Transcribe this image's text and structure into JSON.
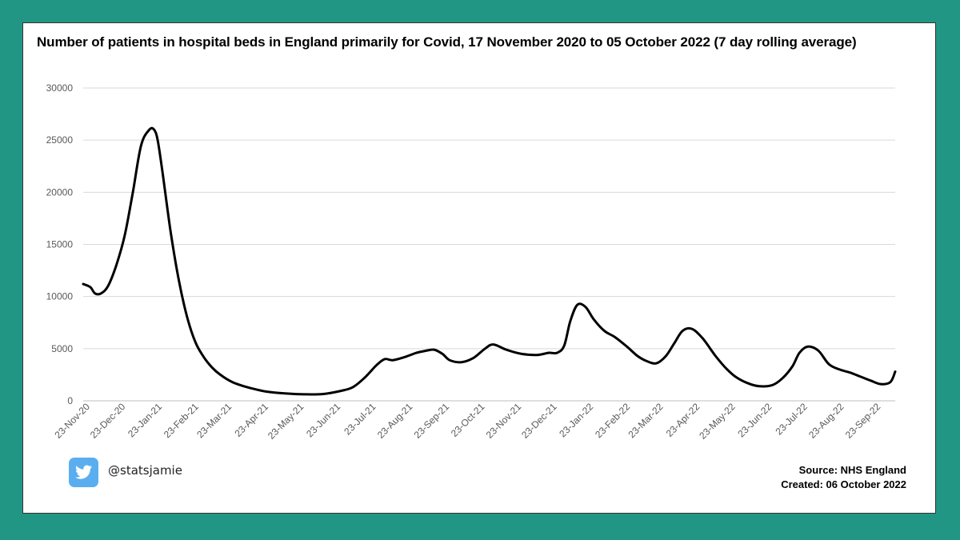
{
  "colors": {
    "background": "#229684",
    "line": "#000000",
    "grid": "#d9d9d9",
    "twitter": "#5aaeef"
  },
  "footer": {
    "handle": "@statsjamie",
    "handle_icon": "twitter-bird-icon",
    "source": "Source: NHS England",
    "created": "Created: 06 October 2022"
  },
  "chart_data": {
    "type": "line",
    "title": "Number of patients in hospital beds in England primarily for Covid, 17 November 2020 to 05 October 2022 (7 day rolling average)",
    "xlabel": "",
    "ylabel": "",
    "ylim": [
      0,
      30000
    ],
    "yticks": [
      "0",
      "5000",
      "10000",
      "15000",
      "20000",
      "25000",
      "30000"
    ],
    "grid": true,
    "legend": "none",
    "x_start": "2020-11-17",
    "x_end": "2022-10-05",
    "x_tick_labels": [
      "23-Nov-20",
      "23-Dec-20",
      "23-Jan-21",
      "23-Feb-21",
      "23-Mar-21",
      "23-Apr-21",
      "23-May-21",
      "23-Jun-21",
      "23-Jul-21",
      "23-Aug-21",
      "23-Sep-21",
      "23-Oct-21",
      "23-Nov-21",
      "23-Dec-21",
      "23-Jan-22",
      "23-Feb-22",
      "23-Mar-22",
      "23-Apr-22",
      "23-May-22",
      "23-Jun-22",
      "23-Jul-22",
      "23-Aug-22",
      "23-Sep-22"
    ],
    "x_tick_dates": [
      "2020-11-23",
      "2020-12-23",
      "2021-01-23",
      "2021-02-23",
      "2021-03-23",
      "2021-04-23",
      "2021-05-23",
      "2021-06-23",
      "2021-07-23",
      "2021-08-23",
      "2021-09-23",
      "2021-10-23",
      "2021-11-23",
      "2021-12-23",
      "2022-01-23",
      "2022-02-23",
      "2022-03-23",
      "2022-04-23",
      "2022-05-23",
      "2022-06-23",
      "2022-07-23",
      "2022-08-23",
      "2022-09-23"
    ],
    "x": [
      "2020-11-17",
      "2020-11-23",
      "2020-11-27",
      "2020-12-02",
      "2020-12-08",
      "2020-12-15",
      "2020-12-22",
      "2020-12-29",
      "2021-01-05",
      "2021-01-12",
      "2021-01-16",
      "2021-01-19",
      "2021-01-23",
      "2021-01-30",
      "2021-02-06",
      "2021-02-13",
      "2021-02-20",
      "2021-02-27",
      "2021-03-06",
      "2021-03-13",
      "2021-03-23",
      "2021-04-02",
      "2021-04-12",
      "2021-04-23",
      "2021-05-08",
      "2021-05-23",
      "2021-06-08",
      "2021-06-23",
      "2021-07-03",
      "2021-07-13",
      "2021-07-23",
      "2021-07-30",
      "2021-08-06",
      "2021-08-16",
      "2021-08-26",
      "2021-09-03",
      "2021-09-10",
      "2021-09-17",
      "2021-09-23",
      "2021-10-03",
      "2021-10-13",
      "2021-10-23",
      "2021-10-30",
      "2021-11-10",
      "2021-11-23",
      "2021-12-06",
      "2021-12-16",
      "2021-12-23",
      "2021-12-29",
      "2022-01-03",
      "2022-01-09",
      "2022-01-16",
      "2022-01-23",
      "2022-02-01",
      "2022-02-10",
      "2022-02-20",
      "2022-03-01",
      "2022-03-09",
      "2022-03-17",
      "2022-03-25",
      "2022-04-01",
      "2022-04-08",
      "2022-04-16",
      "2022-04-25",
      "2022-05-06",
      "2022-05-15",
      "2022-05-23",
      "2022-06-02",
      "2022-06-12",
      "2022-06-23",
      "2022-07-02",
      "2022-07-10",
      "2022-07-16",
      "2022-07-23",
      "2022-08-01",
      "2022-08-10",
      "2022-08-19",
      "2022-08-28",
      "2022-09-06",
      "2022-09-15",
      "2022-09-23",
      "2022-10-01",
      "2022-10-05"
    ],
    "series": [
      {
        "values": [
          11200,
          10900,
          10300,
          10300,
          11000,
          13000,
          15800,
          20000,
          24500,
          26000,
          26000,
          25000,
          22000,
          16200,
          11500,
          8000,
          5600,
          4200,
          3200,
          2500,
          1800,
          1400,
          1100,
          850,
          700,
          620,
          650,
          950,
          1300,
          2200,
          3400,
          4000,
          3900,
          4200,
          4600,
          4800,
          4900,
          4500,
          3900,
          3700,
          4100,
          5000,
          5400,
          4900,
          4500,
          4400,
          4600,
          4600,
          5300,
          7600,
          9200,
          9000,
          7800,
          6700,
          6100,
          5200,
          4300,
          3800,
          3600,
          4300,
          5500,
          6700,
          6900,
          6000,
          4300,
          3100,
          2300,
          1700,
          1400,
          1500,
          2200,
          3300,
          4600,
          5200,
          4800,
          3500,
          3000,
          2700,
          2300,
          1900,
          1600,
          1800,
          2800
        ]
      }
    ]
  }
}
